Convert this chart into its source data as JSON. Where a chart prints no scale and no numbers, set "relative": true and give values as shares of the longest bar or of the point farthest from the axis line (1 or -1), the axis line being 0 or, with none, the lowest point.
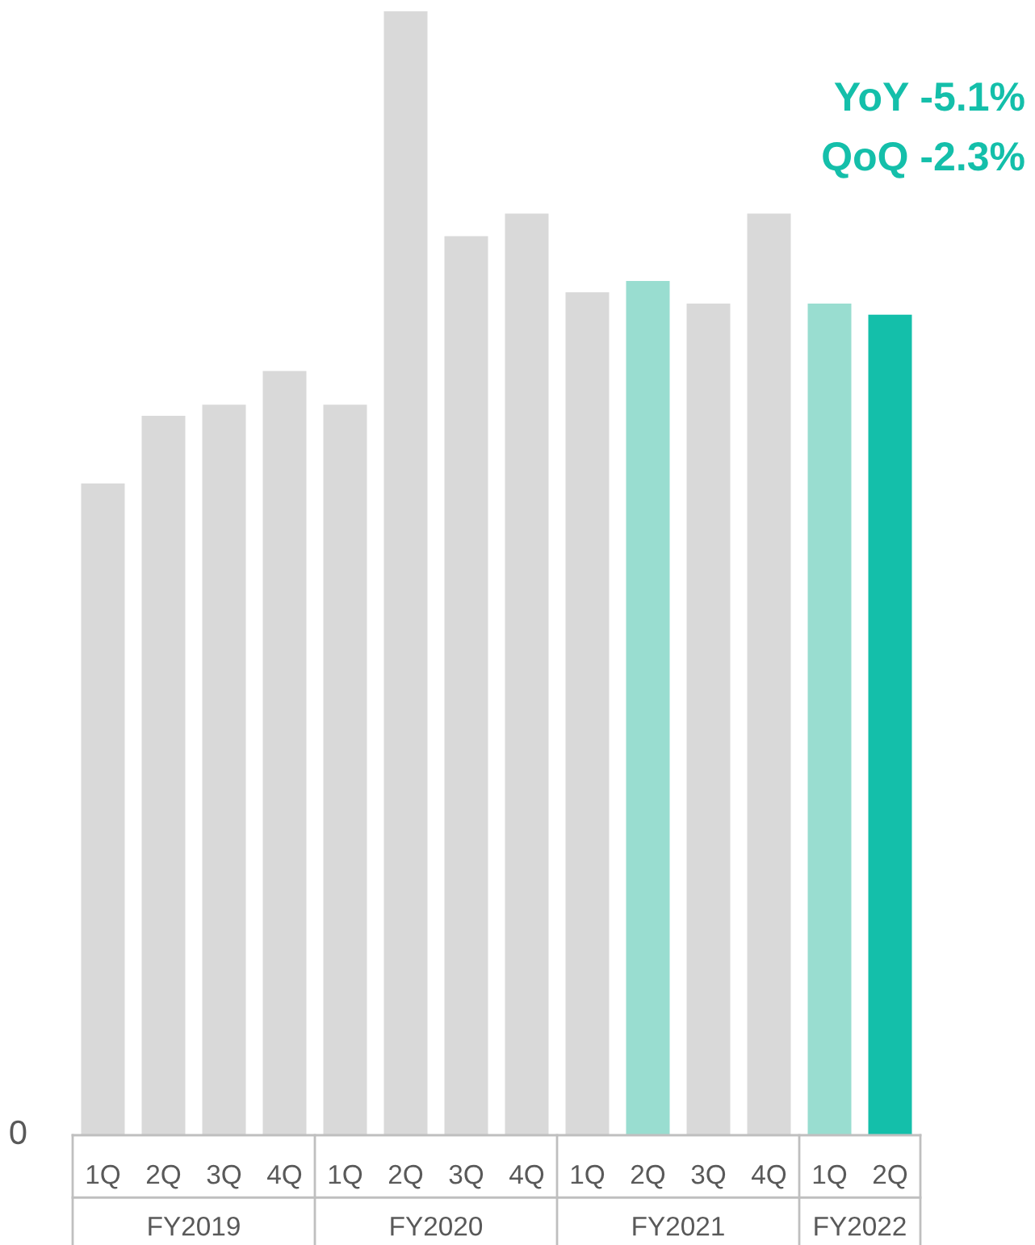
{
  "chart_data": {
    "type": "bar",
    "relative": true,
    "categories": [
      "1Q",
      "2Q",
      "3Q",
      "4Q",
      "1Q",
      "2Q",
      "3Q",
      "4Q",
      "1Q",
      "2Q",
      "3Q",
      "4Q",
      "1Q",
      "2Q"
    ],
    "values": [
      0.58,
      0.64,
      0.65,
      0.68,
      0.65,
      1.0,
      0.8,
      0.82,
      0.75,
      0.76,
      0.74,
      0.82,
      0.74,
      0.73
    ],
    "colors": [
      "#d9d9d9",
      "#d9d9d9",
      "#d9d9d9",
      "#d9d9d9",
      "#d9d9d9",
      "#d9d9d9",
      "#d9d9d9",
      "#d9d9d9",
      "#d9d9d9",
      "#99ddd0",
      "#d9d9d9",
      "#d9d9d9",
      "#99ddd0",
      "#14bfaa"
    ],
    "annotations": [
      "YoY -5.1%",
      "QoQ -2.3%",
      "0",
      "FY2019",
      "FY2020",
      "FY2021",
      "FY2022"
    ],
    "grid": false,
    "legend": false
  }
}
